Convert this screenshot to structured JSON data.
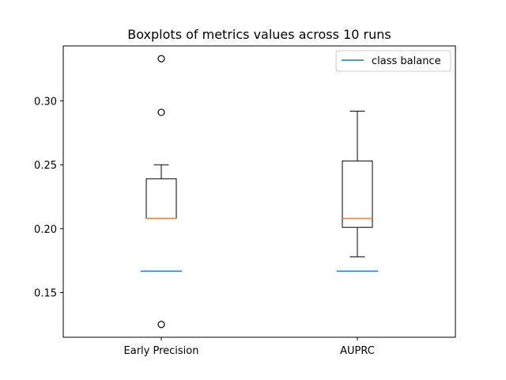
{
  "chart_data": {
    "type": "boxplot",
    "title": "Boxplots of metrics values across 10 runs",
    "xlabel": "",
    "ylabel": "",
    "categories": [
      "Early Precision",
      "AUPRC"
    ],
    "ylim": [
      0.115,
      0.343
    ],
    "yticks": [
      0.15,
      0.2,
      0.25,
      0.3
    ],
    "ytick_labels": [
      "0.15",
      "0.20",
      "0.25",
      "0.30"
    ],
    "grid": false,
    "legend": {
      "position": "top-right",
      "entries": [
        "class balance"
      ]
    },
    "boxes": [
      {
        "category": "Early Precision",
        "whisker_low": 0.208,
        "q1": 0.208,
        "median": 0.208,
        "q3": 0.239,
        "whisker_high": 0.25,
        "outliers": [
          0.333,
          0.291,
          0.125
        ]
      },
      {
        "category": "AUPRC",
        "whisker_low": 0.178,
        "q1": 0.201,
        "median": 0.208,
        "q3": 0.253,
        "whisker_high": 0.292,
        "outliers": []
      }
    ],
    "reference_lines": [
      {
        "name": "class balance",
        "category": "Early Precision",
        "value": 0.1667
      },
      {
        "name": "class balance",
        "category": "AUPRC",
        "value": 0.1667
      }
    ],
    "colors": {
      "box": "#000000",
      "median": "#ff7f0e",
      "class_balance": "#1f77b4"
    }
  }
}
